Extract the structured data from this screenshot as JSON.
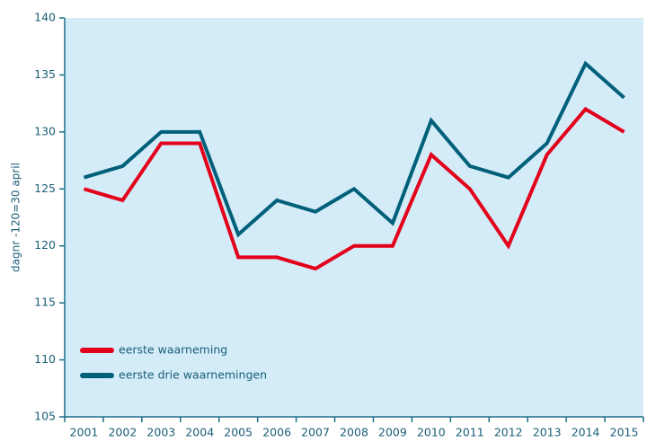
{
  "chart_data": {
    "type": "line",
    "ylabel": "dagnr -120=30 april",
    "categories": [
      "2001",
      "2002",
      "2003",
      "2004",
      "2005",
      "2006",
      "2007",
      "2008",
      "2009",
      "2010",
      "2011",
      "2012",
      "2013",
      "2014",
      "2015"
    ],
    "series": [
      {
        "name": "eerste waarneming",
        "color": "#e3001b",
        "values": [
          125,
          124,
          129,
          129,
          119,
          119,
          118,
          120,
          120,
          128,
          125,
          120,
          128,
          132,
          130
        ]
      },
      {
        "name": "eerste drie waarnemingen",
        "color": "#00607a",
        "values": [
          126,
          127,
          130,
          130,
          121,
          124,
          123,
          125,
          122,
          131,
          127,
          126,
          129,
          136,
          133
        ]
      }
    ],
    "ylim": [
      105,
      140
    ],
    "yticks": [
      105,
      110,
      115,
      120,
      125,
      130,
      135,
      140
    ],
    "legend": "lower left",
    "background": "#d4ecf8"
  }
}
